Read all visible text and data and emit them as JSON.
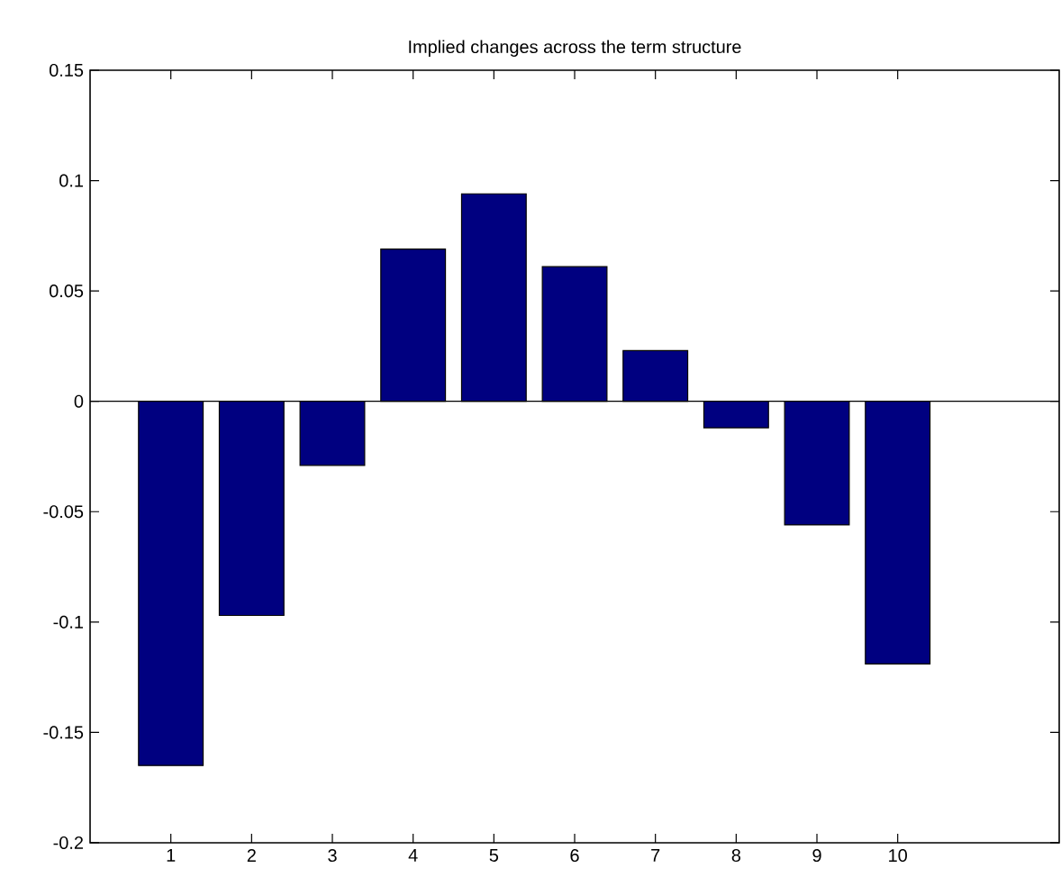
{
  "chart_data": {
    "type": "bar",
    "title": "Implied changes across the term structure",
    "x": [
      1,
      2,
      3,
      4,
      5,
      6,
      7,
      8,
      9,
      10
    ],
    "values": [
      -0.165,
      -0.097,
      -0.029,
      0.069,
      0.094,
      0.061,
      0.023,
      -0.012,
      -0.056,
      -0.119
    ],
    "color": "#000080",
    "xlim": [
      0,
      12
    ],
    "xticks": [
      1,
      2,
      3,
      4,
      5,
      6,
      7,
      8,
      9,
      10
    ],
    "ylim": [
      -0.2,
      0.15
    ],
    "yticks": [
      -0.2,
      -0.15,
      -0.1,
      -0.05,
      0,
      0.05,
      0.1,
      0.15
    ],
    "ref_lines": [
      {
        "axis": "y",
        "value": 0,
        "color": "#000000"
      }
    ],
    "grid": false
  }
}
